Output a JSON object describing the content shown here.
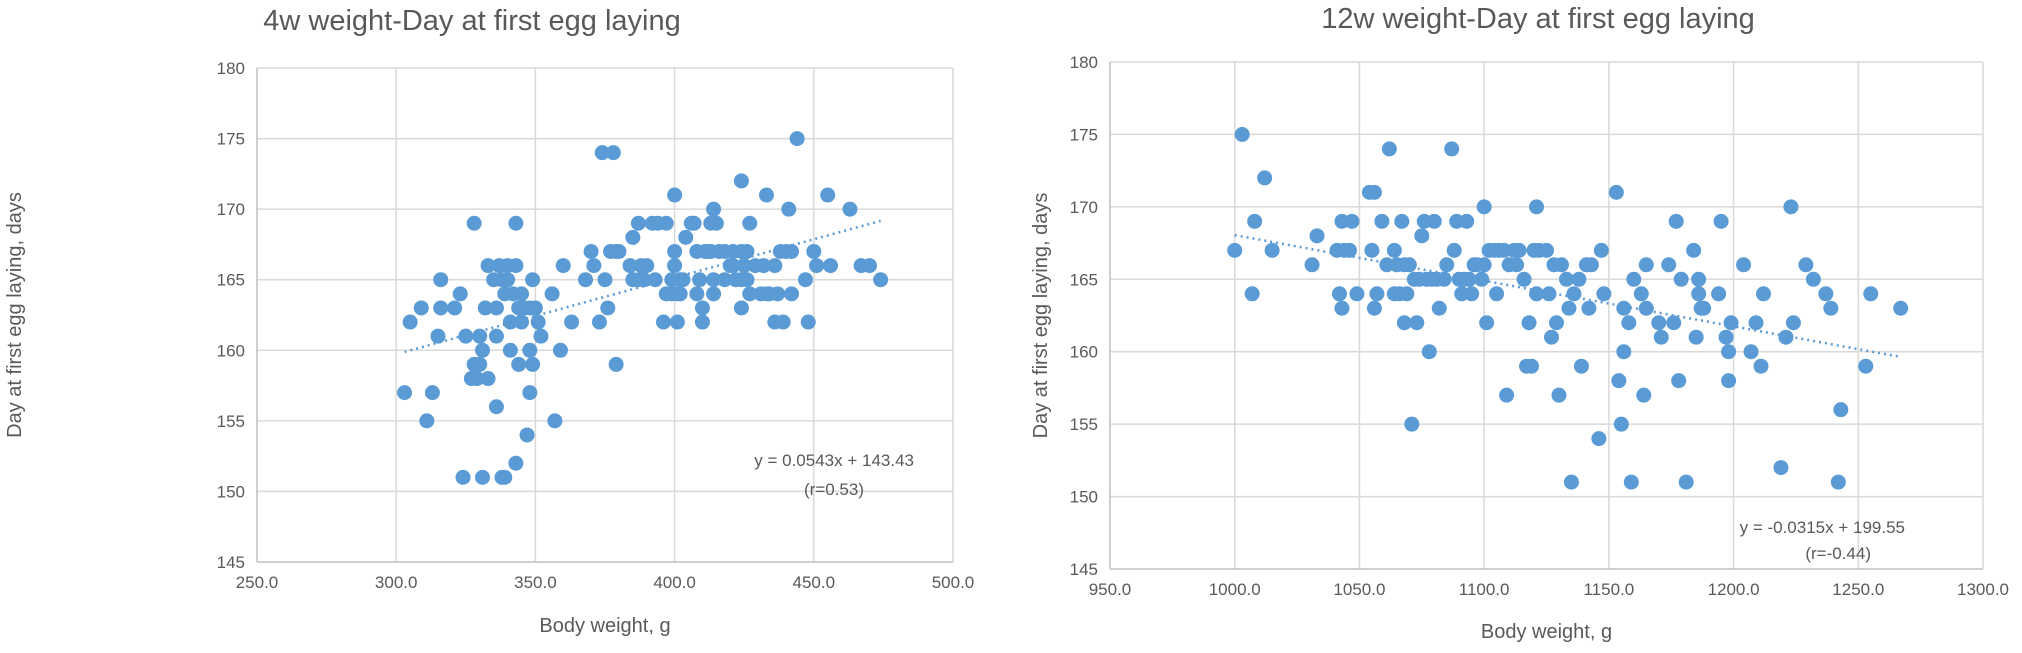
{
  "chart_data": [
    {
      "type": "scatter",
      "title": "4w weight-Day at first egg laying",
      "xlabel": "Body weight, g",
      "ylabel": "Day at first egg laying, days",
      "xlim": [
        250,
        500
      ],
      "ylim": [
        145,
        180
      ],
      "x_ticks": [
        250,
        300,
        350,
        400,
        450,
        500
      ],
      "x_tick_labels": [
        "250.0",
        "300.0",
        "350.0",
        "400.0",
        "450.0",
        "500.0"
      ],
      "y_ticks": [
        145,
        150,
        155,
        160,
        165,
        170,
        175,
        180
      ],
      "y_tick_labels": [
        "145",
        "150",
        "155",
        "160",
        "165",
        "170",
        "175",
        "180"
      ],
      "grid": true,
      "trendline": {
        "type": "linear",
        "slope": 0.0543,
        "intercept": 143.43,
        "x_range": [
          303,
          474
        ]
      },
      "equation": "y = 0.0543x + 143.43",
      "correlation": "(r=0.53)",
      "color": "#5b9bd5",
      "points": [
        [
          303,
          157
        ],
        [
          305,
          162
        ],
        [
          309,
          163
        ],
        [
          311,
          155
        ],
        [
          313,
          157
        ],
        [
          315,
          161
        ],
        [
          316,
          163
        ],
        [
          316,
          165
        ],
        [
          321,
          163
        ],
        [
          323,
          164
        ],
        [
          324,
          151
        ],
        [
          325,
          161
        ],
        [
          327,
          158
        ],
        [
          328,
          159
        ],
        [
          328,
          169
        ],
        [
          329,
          158
        ],
        [
          330,
          161
        ],
        [
          330,
          159
        ],
        [
          331,
          151
        ],
        [
          331,
          160
        ],
        [
          332,
          163
        ],
        [
          333,
          158
        ],
        [
          333,
          166
        ],
        [
          335,
          165
        ],
        [
          336,
          161
        ],
        [
          336,
          156
        ],
        [
          336,
          163
        ],
        [
          337,
          166
        ],
        [
          338,
          165
        ],
        [
          338,
          151
        ],
        [
          339,
          151
        ],
        [
          339,
          164
        ],
        [
          340,
          166
        ],
        [
          340,
          165
        ],
        [
          341,
          160
        ],
        [
          341,
          162
        ],
        [
          342,
          164
        ],
        [
          343,
          152
        ],
        [
          343,
          169
        ],
        [
          343,
          166
        ],
        [
          344,
          159
        ],
        [
          344,
          163
        ],
        [
          345,
          164
        ],
        [
          345,
          162
        ],
        [
          346,
          163
        ],
        [
          347,
          154
        ],
        [
          348,
          160
        ],
        [
          348,
          163
        ],
        [
          348,
          157
        ],
        [
          349,
          159
        ],
        [
          349,
          165
        ],
        [
          350,
          163
        ],
        [
          351,
          162
        ],
        [
          352,
          161
        ],
        [
          356,
          164
        ],
        [
          357,
          155
        ],
        [
          359,
          160
        ],
        [
          360,
          166
        ],
        [
          363,
          162
        ],
        [
          368,
          165
        ],
        [
          370,
          167
        ],
        [
          371,
          166
        ],
        [
          373,
          162
        ],
        [
          374,
          174
        ],
        [
          375,
          165
        ],
        [
          376,
          163
        ],
        [
          377,
          167
        ],
        [
          378,
          174
        ],
        [
          379,
          167
        ],
        [
          379,
          159
        ],
        [
          380,
          167
        ],
        [
          384,
          166
        ],
        [
          385,
          168
        ],
        [
          385,
          165
        ],
        [
          387,
          169
        ],
        [
          387,
          165
        ],
        [
          388,
          166
        ],
        [
          389,
          165
        ],
        [
          390,
          166
        ],
        [
          392,
          169
        ],
        [
          393,
          165
        ],
        [
          394,
          169
        ],
        [
          396,
          162
        ],
        [
          397,
          164
        ],
        [
          397,
          169
        ],
        [
          399,
          164
        ],
        [
          399,
          165
        ],
        [
          400,
          171
        ],
        [
          400,
          167
        ],
        [
          400,
          166
        ],
        [
          401,
          164
        ],
        [
          401,
          162
        ],
        [
          402,
          164
        ],
        [
          402,
          165
        ],
        [
          403,
          165
        ],
        [
          404,
          168
        ],
        [
          406,
          169
        ],
        [
          407,
          169
        ],
        [
          408,
          167
        ],
        [
          408,
          164
        ],
        [
          409,
          165
        ],
        [
          410,
          162
        ],
        [
          410,
          163
        ],
        [
          411,
          167
        ],
        [
          412,
          167
        ],
        [
          413,
          169
        ],
        [
          413,
          167
        ],
        [
          414,
          170
        ],
        [
          414,
          165
        ],
        [
          414,
          164
        ],
        [
          415,
          169
        ],
        [
          416,
          167
        ],
        [
          418,
          167
        ],
        [
          418,
          165
        ],
        [
          420,
          166
        ],
        [
          421,
          167
        ],
        [
          421,
          166
        ],
        [
          422,
          165
        ],
        [
          424,
          172
        ],
        [
          424,
          167
        ],
        [
          424,
          165
        ],
        [
          424,
          163
        ],
        [
          425,
          166
        ],
        [
          426,
          167
        ],
        [
          426,
          165
        ],
        [
          427,
          169
        ],
        [
          427,
          164
        ],
        [
          429,
          166
        ],
        [
          431,
          164
        ],
        [
          432,
          166
        ],
        [
          433,
          171
        ],
        [
          433,
          164
        ],
        [
          434,
          164
        ],
        [
          436,
          166
        ],
        [
          436,
          162
        ],
        [
          437,
          164
        ],
        [
          438,
          167
        ],
        [
          439,
          162
        ],
        [
          440,
          167
        ],
        [
          441,
          170
        ],
        [
          442,
          164
        ],
        [
          442,
          167
        ],
        [
          444,
          175
        ],
        [
          447,
          165
        ],
        [
          448,
          162
        ],
        [
          450,
          167
        ],
        [
          451,
          166
        ],
        [
          455,
          171
        ],
        [
          456,
          166
        ],
        [
          463,
          170
        ],
        [
          467,
          166
        ],
        [
          470,
          166
        ],
        [
          474,
          165
        ]
      ]
    },
    {
      "type": "scatter",
      "title": "12w weight-Day at first egg laying",
      "xlabel": "Body weight, g",
      "ylabel": "Day at first egg laying, days",
      "xlim": [
        950,
        1300
      ],
      "ylim": [
        145,
        180
      ],
      "x_ticks": [
        950,
        1000,
        1050,
        1100,
        1150,
        1200,
        1250,
        1300
      ],
      "x_tick_labels": [
        "950.0",
        "1000.0",
        "1050.0",
        "1100.0",
        "1150.0",
        "1200.0",
        "1250.0",
        "1300.0"
      ],
      "y_ticks": [
        145,
        150,
        155,
        160,
        165,
        170,
        175,
        180
      ],
      "y_tick_labels": [
        "145",
        "150",
        "155",
        "160",
        "165",
        "170",
        "175",
        "180"
      ],
      "grid": true,
      "trendline": {
        "type": "linear",
        "slope": -0.0315,
        "intercept": 199.55,
        "x_range": [
          1000,
          1267
        ]
      },
      "equation": "y = -0.0315x + 199.55",
      "correlation": "(r=-0.44)",
      "color": "#5b9bd5",
      "points": [
        [
          1000,
          167
        ],
        [
          1003,
          175
        ],
        [
          1007,
          164
        ],
        [
          1008,
          169
        ],
        [
          1012,
          172
        ],
        [
          1015,
          167
        ],
        [
          1031,
          166
        ],
        [
          1033,
          168
        ],
        [
          1041,
          167
        ],
        [
          1042,
          164
        ],
        [
          1043,
          163
        ],
        [
          1043,
          169
        ],
        [
          1044,
          167
        ],
        [
          1046,
          167
        ],
        [
          1047,
          169
        ],
        [
          1049,
          164
        ],
        [
          1054,
          171
        ],
        [
          1055,
          167
        ],
        [
          1056,
          171
        ],
        [
          1056,
          163
        ],
        [
          1057,
          164
        ],
        [
          1059,
          169
        ],
        [
          1061,
          166
        ],
        [
          1062,
          174
        ],
        [
          1064,
          167
        ],
        [
          1064,
          164
        ],
        [
          1065,
          166
        ],
        [
          1066,
          164
        ],
        [
          1067,
          169
        ],
        [
          1068,
          166
        ],
        [
          1068,
          162
        ],
        [
          1069,
          164
        ],
        [
          1070,
          166
        ],
        [
          1071,
          155
        ],
        [
          1072,
          165
        ],
        [
          1073,
          162
        ],
        [
          1074,
          165
        ],
        [
          1075,
          168
        ],
        [
          1076,
          169
        ],
        [
          1077,
          165
        ],
        [
          1078,
          160
        ],
        [
          1079,
          165
        ],
        [
          1080,
          169
        ],
        [
          1081,
          165
        ],
        [
          1082,
          163
        ],
        [
          1084,
          165
        ],
        [
          1085,
          166
        ],
        [
          1087,
          174
        ],
        [
          1088,
          167
        ],
        [
          1089,
          169
        ],
        [
          1090,
          165
        ],
        [
          1091,
          164
        ],
        [
          1092,
          165
        ],
        [
          1093,
          169
        ],
        [
          1094,
          165
        ],
        [
          1095,
          164
        ],
        [
          1096,
          166
        ],
        [
          1097,
          166
        ],
        [
          1099,
          165
        ],
        [
          1100,
          166
        ],
        [
          1100,
          170
        ],
        [
          1101,
          162
        ],
        [
          1102,
          167
        ],
        [
          1104,
          167
        ],
        [
          1105,
          164
        ],
        [
          1106,
          167
        ],
        [
          1108,
          167
        ],
        [
          1109,
          157
        ],
        [
          1110,
          166
        ],
        [
          1112,
          167
        ],
        [
          1113,
          166
        ],
        [
          1114,
          167
        ],
        [
          1116,
          165
        ],
        [
          1117,
          159
        ],
        [
          1118,
          162
        ],
        [
          1119,
          159
        ],
        [
          1120,
          167
        ],
        [
          1121,
          170
        ],
        [
          1121,
          164
        ],
        [
          1122,
          167
        ],
        [
          1125,
          167
        ],
        [
          1126,
          164
        ],
        [
          1127,
          161
        ],
        [
          1128,
          166
        ],
        [
          1129,
          162
        ],
        [
          1130,
          157
        ],
        [
          1131,
          166
        ],
        [
          1133,
          165
        ],
        [
          1134,
          163
        ],
        [
          1135,
          151
        ],
        [
          1136,
          164
        ],
        [
          1138,
          165
        ],
        [
          1139,
          159
        ],
        [
          1141,
          166
        ],
        [
          1142,
          163
        ],
        [
          1143,
          166
        ],
        [
          1146,
          154
        ],
        [
          1147,
          167
        ],
        [
          1148,
          164
        ],
        [
          1153,
          171
        ],
        [
          1154,
          158
        ],
        [
          1155,
          155
        ],
        [
          1156,
          160
        ],
        [
          1156,
          163
        ],
        [
          1158,
          162
        ],
        [
          1159,
          151
        ],
        [
          1160,
          165
        ],
        [
          1163,
          164
        ],
        [
          1164,
          157
        ],
        [
          1165,
          166
        ],
        [
          1165,
          163
        ],
        [
          1170,
          162
        ],
        [
          1171,
          161
        ],
        [
          1174,
          166
        ],
        [
          1176,
          162
        ],
        [
          1177,
          169
        ],
        [
          1178,
          158
        ],
        [
          1179,
          165
        ],
        [
          1181,
          151
        ],
        [
          1184,
          167
        ],
        [
          1185,
          161
        ],
        [
          1186,
          164
        ],
        [
          1186,
          165
        ],
        [
          1187,
          163
        ],
        [
          1188,
          163
        ],
        [
          1194,
          164
        ],
        [
          1195,
          169
        ],
        [
          1197,
          161
        ],
        [
          1198,
          158
        ],
        [
          1198,
          160
        ],
        [
          1199,
          162
        ],
        [
          1204,
          166
        ],
        [
          1207,
          160
        ],
        [
          1209,
          162
        ],
        [
          1211,
          159
        ],
        [
          1212,
          164
        ],
        [
          1219,
          152
        ],
        [
          1221,
          161
        ],
        [
          1223,
          170
        ],
        [
          1224,
          162
        ],
        [
          1229,
          166
        ],
        [
          1232,
          165
        ],
        [
          1237,
          164
        ],
        [
          1239,
          163
        ],
        [
          1242,
          151
        ],
        [
          1243,
          156
        ],
        [
          1253,
          159
        ],
        [
          1255,
          164
        ],
        [
          1267,
          163
        ]
      ]
    }
  ]
}
